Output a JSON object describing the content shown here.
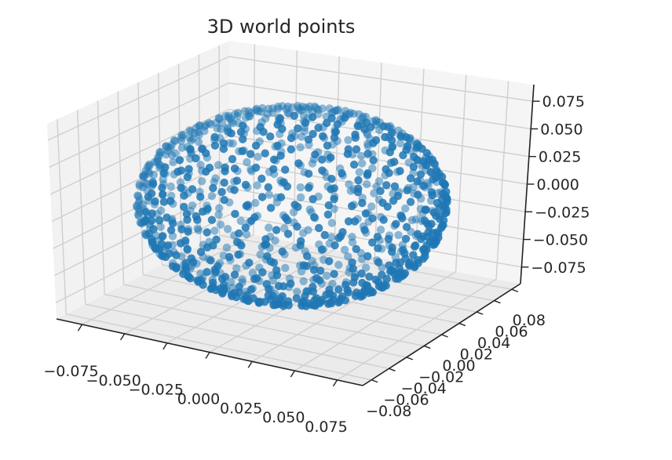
{
  "chart_data": {
    "type": "scatter",
    "projection": "3d",
    "title": "3D world points",
    "xlabel": "",
    "ylabel": "",
    "zlabel": "",
    "grid": true,
    "legend": "none",
    "marker_color": "#1f77b4",
    "pane_color": "#f2f2f2",
    "grid_color": "#cfcfcf",
    "xlim": [
      -0.09,
      0.09
    ],
    "ylim": [
      -0.09,
      0.09
    ],
    "zlim": [
      -0.09,
      0.09
    ],
    "x_ticks": [
      "−0.075",
      "−0.050",
      "−0.025",
      "0.000",
      "0.025",
      "0.050",
      "0.075"
    ],
    "y_ticks": [
      "−0.08",
      "−0.06",
      "−0.04",
      "−0.02",
      "0.00",
      "0.02",
      "0.04",
      "0.06",
      "0.08"
    ],
    "z_ticks": [
      "−0.075",
      "−0.050",
      "−0.025",
      "0.000",
      "0.025",
      "0.050",
      "0.075"
    ],
    "point_count": 1000,
    "point_distribution": "points on a sphere of radius 0.08 centred at the origin",
    "sphere_radius": 0.08
  }
}
